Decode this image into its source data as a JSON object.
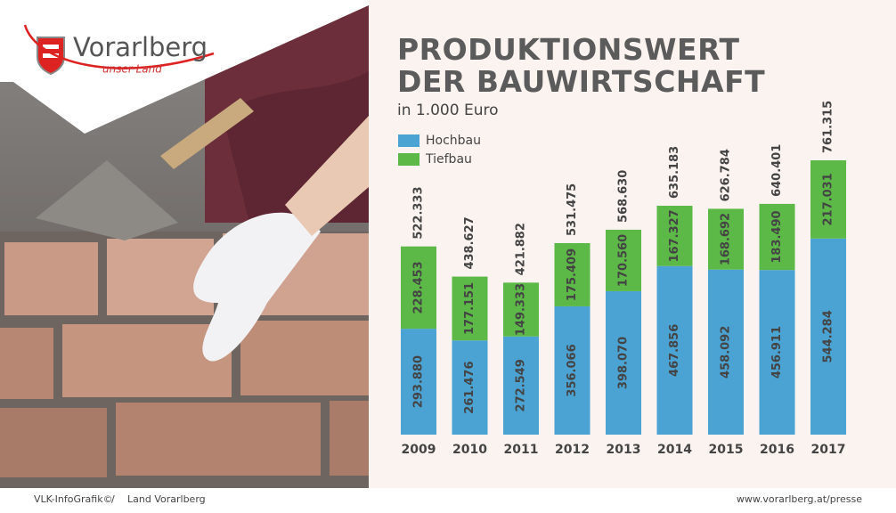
{
  "header": {
    "logo_name": "Vorarlberg",
    "logo_tagline": "unser Land"
  },
  "chart_data": {
    "type": "stacked_bar",
    "title": "PRODUKTIONSWERT DER BAUWIRTSCHAFT",
    "subtitle": "in 1.000 Euro",
    "categories": [
      "2009",
      "2010",
      "2011",
      "2012",
      "2013",
      "2014",
      "2015",
      "2016",
      "2017"
    ],
    "series": [
      {
        "name": "Hochbau",
        "color": "#4ba3d3",
        "values": [
          293880,
          261476,
          272549,
          356066,
          398070,
          467856,
          458092,
          456911,
          544284
        ],
        "value_labels": [
          "293.880",
          "261.476",
          "272.549",
          "356.066",
          "398.070",
          "467.856",
          "458.092",
          "456.911",
          "544.284"
        ]
      },
      {
        "name": "Tiefbau",
        "color": "#5db947",
        "values": [
          228453,
          177151,
          149333,
          175409,
          170560,
          167327,
          168692,
          183490,
          217031
        ],
        "value_labels": [
          "228.453",
          "177.151",
          "149.333",
          "175.409",
          "170.560",
          "167.327",
          "168.692",
          "183.490",
          "217.031"
        ]
      }
    ],
    "totals": {
      "values": [
        522333,
        438627,
        421882,
        531475,
        568630,
        635183,
        626784,
        640401,
        761315
      ],
      "value_labels": [
        "522.333",
        "438.627",
        "421.882",
        "531.475",
        "568.630",
        "635.183",
        "626.784",
        "640.401",
        "761.315"
      ]
    },
    "legend": "top-left"
  },
  "footer": {
    "left": "VLK-InfoGrafik©",
    "separator": "/",
    "middle": "Land Vorarlberg",
    "right": "www.vorarlberg.at/presse"
  }
}
